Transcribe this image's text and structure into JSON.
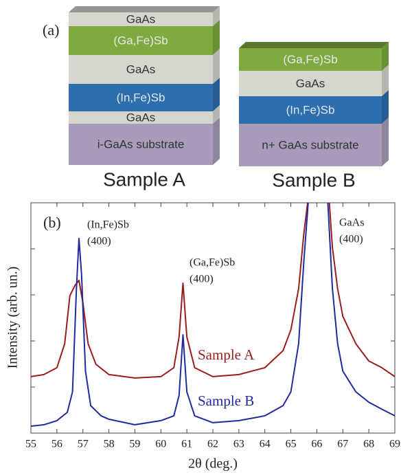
{
  "panel_a": {
    "label": "(a)",
    "samples": [
      {
        "name": "Sample A",
        "layers": [
          {
            "label": "GaAs",
            "color": "#d6d6cf"
          },
          {
            "label": "(Ga,Fe)Sb",
            "color": "#7eaa3f"
          },
          {
            "label": "GaAs",
            "color": "#d6d6cf"
          },
          {
            "label": "(In,Fe)Sb",
            "color": "#2d6fae"
          },
          {
            "label": "GaAs",
            "color": "#d6d6cf"
          },
          {
            "label": "i-GaAs substrate",
            "color": "#a99cbb"
          }
        ]
      },
      {
        "name": "Sample B",
        "layers": [
          {
            "label": "(Ga,Fe)Sb",
            "color": "#7eaa3f"
          },
          {
            "label": "GaAs",
            "color": "#d6d6cf"
          },
          {
            "label": "(In,Fe)Sb",
            "color": "#2d6fae"
          },
          {
            "label": "n+ GaAs substrate",
            "color": "#a99cbb"
          }
        ]
      }
    ]
  },
  "chart_data": {
    "type": "line",
    "panel_label": "(b)",
    "xlabel": "2θ (deg.)",
    "ylabel": "Intensity (arb. un.)",
    "xlim": [
      55,
      69
    ],
    "xticks": [
      55,
      56,
      57,
      58,
      59,
      60,
      61,
      62,
      63,
      64,
      65,
      66,
      67,
      68,
      69
    ],
    "ylim": [
      0,
      100
    ],
    "yticks": [
      20,
      40,
      60,
      80
    ],
    "annotations": [
      [
        "(In,Fe)Sb",
        "(400)"
      ],
      [
        "(Ga,Fe)Sb",
        "(400)"
      ],
      [
        "GaAs",
        "(400)"
      ]
    ],
    "series": [
      {
        "name": "Sample A",
        "color": "#9b1c1c",
        "x": [
          55.0,
          55.5,
          56.0,
          56.3,
          56.5,
          56.7,
          56.85,
          57.0,
          57.2,
          57.5,
          58.0,
          59.0,
          60.0,
          60.5,
          60.7,
          60.85,
          61.0,
          61.3,
          62.0,
          63.0,
          64.0,
          64.7,
          65.0,
          65.3,
          65.5,
          65.7,
          66.45,
          66.6,
          66.8,
          67.0,
          67.5,
          68.0,
          68.5,
          69.0
        ],
        "values": [
          24.5,
          25.4,
          28.4,
          38.8,
          59.7,
          64.2,
          66.3,
          56.7,
          38.8,
          29.9,
          25.4,
          23.9,
          24.5,
          28.4,
          41.8,
          65.1,
          41.8,
          28.4,
          24.5,
          25.4,
          28.4,
          35.8,
          44.8,
          62.7,
          86.6,
          105,
          105,
          80.6,
          62.7,
          50.7,
          38.8,
          31.3,
          28.4,
          24.5
        ]
      },
      {
        "name": "Sample B",
        "color": "#1f2a9e",
        "x": [
          55.0,
          55.5,
          56.0,
          56.4,
          56.6,
          56.75,
          56.85,
          56.95,
          57.1,
          57.3,
          57.7,
          58.0,
          59.0,
          60.0,
          60.5,
          60.7,
          60.85,
          61.0,
          61.3,
          62.0,
          63.0,
          64.0,
          64.7,
          65.0,
          65.3,
          65.5,
          65.7,
          66.4,
          66.6,
          66.8,
          67.0,
          67.5,
          68.0,
          68.5,
          69.0
        ],
        "values": [
          3.0,
          3.6,
          5.4,
          9.0,
          17.9,
          62.7,
          84.5,
          68.7,
          26.9,
          11.9,
          7.5,
          6.0,
          3.6,
          5.4,
          7.5,
          16.4,
          42.7,
          17.9,
          7.5,
          4.5,
          5.4,
          7.5,
          11.9,
          17.9,
          38.8,
          74.6,
          105,
          105,
          62.7,
          38.8,
          26.9,
          17.9,
          13.4,
          10.4,
          7.5
        ]
      }
    ]
  }
}
